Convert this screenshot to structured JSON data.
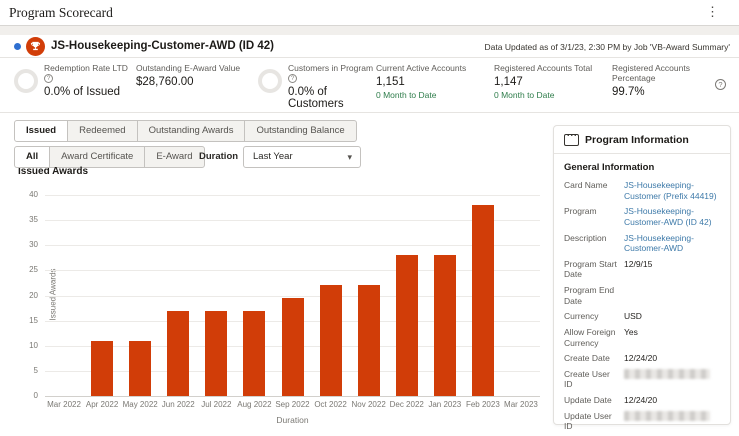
{
  "app": {
    "title": "Program Scorecard"
  },
  "icons": {
    "kebab_glyph": "⋮",
    "caret_glyph": "▾",
    "help_glyph": "?",
    "info_glyph": "?"
  },
  "program_header": {
    "title": "JS-Housekeeping-Customer-AWD (ID 42)",
    "status_dot_color": "#2e6fd0",
    "badge_color": "#d13d08",
    "data_updated": "Data Updated as of 3/1/23, 2:30 PM by Job 'VB-Award Summary'"
  },
  "kpis": [
    {
      "label": "Redemption Rate LTD",
      "value": "0.0% of Issued",
      "has_info_icon": true,
      "has_donut": true
    },
    {
      "label": "Outstanding E-Award Value",
      "value": "$28,760.00"
    },
    {
      "label": "Customers in Program",
      "value": "0.0% of Customers",
      "has_info_icon": true,
      "has_donut": true
    },
    {
      "label": "Current Active Accounts",
      "value": "1,151",
      "sub": "0 Month to Date"
    },
    {
      "label": "Registered Accounts Total",
      "value": "1,147",
      "sub": "0 Month to Date"
    },
    {
      "label": "Registered Accounts Percentage",
      "value": "99.7%"
    }
  ],
  "status_colors": {
    "positive_green": "#2f7d4b"
  },
  "tabs": {
    "items": [
      {
        "label": "Issued",
        "active": true
      },
      {
        "label": "Redeemed",
        "active": false
      },
      {
        "label": "Outstanding Awards",
        "active": false
      },
      {
        "label": "Outstanding Balance",
        "active": false
      }
    ]
  },
  "filters": {
    "items": [
      {
        "label": "All",
        "active": true
      },
      {
        "label": "Award Certificate",
        "active": false
      },
      {
        "label": "E-Award",
        "active": false
      }
    ],
    "duration_label": "Duration",
    "duration_value": "Last Year"
  },
  "chart_data": {
    "type": "bar",
    "title": "Issued Awards",
    "xlabel": "Duration",
    "ylabel": "Issued Awards",
    "categories": [
      "Mar 2022",
      "Apr 2022",
      "May 2022",
      "Jun 2022",
      "Jul 2022",
      "Aug 2022",
      "Sep 2022",
      "Oct 2022",
      "Nov 2022",
      "Dec 2022",
      "Jan 2023",
      "Feb 2023",
      "Mar 2023"
    ],
    "values": [
      0,
      11,
      11,
      17,
      17,
      17,
      19.5,
      22,
      22,
      28,
      28,
      38,
      0
    ],
    "ylim": [
      0,
      40
    ],
    "ytick_step": 5,
    "bar_color": "#d13d08",
    "grid": true,
    "legend": "none"
  },
  "panel": {
    "title": "Program Information",
    "section": "General Information",
    "fields": [
      {
        "label": "Card Name",
        "value": "JS-Housekeeping-Customer (Prefix 44419)",
        "link": true
      },
      {
        "label": "Program",
        "value": "JS-Housekeeping-Customer-AWD (ID 42)",
        "link": true
      },
      {
        "label": "Description",
        "value": "JS-Housekeeping-Customer-AWD",
        "link": true
      },
      {
        "label": "Program Start Date",
        "value": "12/9/15"
      },
      {
        "label": "Program End Date",
        "value": ""
      },
      {
        "label": "Currency",
        "value": "USD"
      },
      {
        "label": "Allow Foreign Currency",
        "value": "Yes"
      },
      {
        "label": "Create Date",
        "value": "12/24/20"
      },
      {
        "label": "Create User ID",
        "value": "",
        "redacted": true
      },
      {
        "label": "Update Date",
        "value": "12/24/20"
      },
      {
        "label": "Update User ID",
        "value": "",
        "redacted": true
      }
    ]
  }
}
